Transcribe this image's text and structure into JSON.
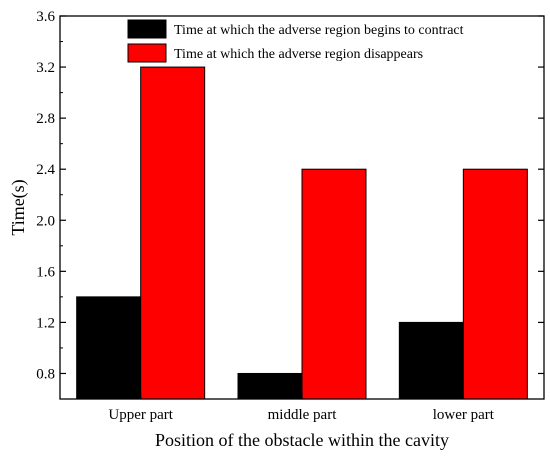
{
  "chart_data": {
    "type": "bar",
    "categories": [
      "Upper part",
      "middle part",
      "lower part"
    ],
    "series": [
      {
        "name": "Time at which the adverse region begins to contract",
        "values": [
          1.4,
          0.8,
          1.2
        ],
        "color": "#000000"
      },
      {
        "name": "Time at which the adverse region disappears",
        "values": [
          3.2,
          2.4,
          2.4
        ],
        "color": "#ff0000"
      }
    ],
    "xlabel": "Position of the obstacle within the cavity",
    "ylabel": "Time(s)",
    "ylim": [
      0.6,
      3.6
    ],
    "yticks": [
      "0.8",
      "1.2",
      "1.6",
      "2.0",
      "2.4",
      "2.8",
      "3.2",
      "3.6"
    ],
    "legend_position": "top-right",
    "grid": false
  }
}
